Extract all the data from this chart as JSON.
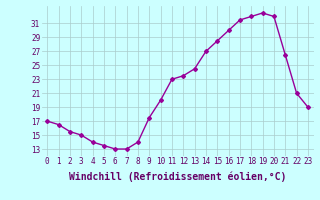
{
  "x": [
    0,
    1,
    2,
    3,
    4,
    5,
    6,
    7,
    8,
    9,
    10,
    11,
    12,
    13,
    14,
    15,
    16,
    17,
    18,
    19,
    20,
    21,
    22,
    23
  ],
  "y": [
    17,
    16.5,
    15.5,
    15,
    14,
    13.5,
    13,
    13,
    14,
    17.5,
    20,
    23,
    23.5,
    24.5,
    27,
    28.5,
    30,
    31.5,
    32,
    32.5,
    32,
    26.5,
    21,
    19
  ],
  "line_color": "#990099",
  "marker": "D",
  "marker_size": 2,
  "bg_color": "#ccffff",
  "grid_color": "#aacccc",
  "xlabel": "Windchill (Refroidissement éolien,°C)",
  "xlabel_fontsize": 7,
  "ytick_labels": [
    "13",
    "15",
    "17",
    "19",
    "21",
    "23",
    "25",
    "27",
    "29",
    "31"
  ],
  "ytick_values": [
    13,
    15,
    17,
    19,
    21,
    23,
    25,
    27,
    29,
    31
  ],
  "ylim": [
    12.0,
    33.5
  ],
  "xlim": [
    -0.5,
    23.5
  ],
  "xtick_labels": [
    "0",
    "1",
    "2",
    "3",
    "4",
    "5",
    "6",
    "7",
    "8",
    "9",
    "10",
    "11",
    "12",
    "13",
    "14",
    "15",
    "16",
    "17",
    "18",
    "19",
    "20",
    "21",
    "22",
    "23"
  ],
  "tick_fontsize": 5.5,
  "line_width": 1.0,
  "label_color": "#660066"
}
